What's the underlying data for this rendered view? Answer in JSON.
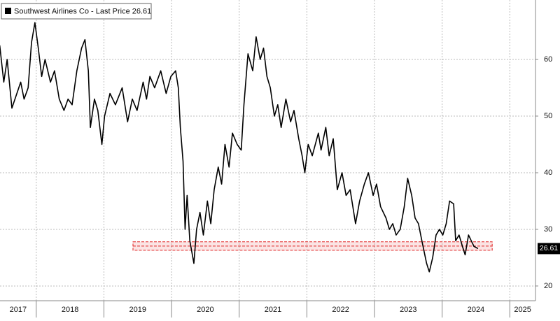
{
  "chart_data": {
    "type": "line",
    "series": [
      {
        "name": "Southwest Airlines Co - Last Price 26.61",
        "color": "#000000",
        "x": [
          2017.46,
          2017.52,
          2017.57,
          2017.64,
          2017.77,
          2017.82,
          2017.88,
          2017.93,
          2017.98,
          2018.03,
          2018.08,
          2018.13,
          2018.21,
          2018.27,
          2018.34,
          2018.41,
          2018.47,
          2018.53,
          2018.6,
          2018.67,
          2018.72,
          2018.77,
          2018.8,
          2018.86,
          2018.91,
          2018.97,
          2019.01,
          2019.09,
          2019.17,
          2019.27,
          2019.35,
          2019.42,
          2019.49,
          2019.58,
          2019.63,
          2019.68,
          2019.75,
          2019.84,
          2019.92,
          2019.99,
          2020.06,
          2020.1,
          2020.13,
          2020.17,
          2020.2,
          2020.23,
          2020.27,
          2020.33,
          2020.37,
          2020.42,
          2020.47,
          2020.53,
          2020.58,
          2020.63,
          2020.69,
          2020.74,
          2020.79,
          2020.85,
          2020.9,
          2020.97,
          2021.03,
          2021.07,
          2021.13,
          2021.2,
          2021.25,
          2021.31,
          2021.36,
          2021.41,
          2021.46,
          2021.52,
          2021.57,
          2021.62,
          2021.69,
          2021.76,
          2021.81,
          2021.88,
          2021.93,
          2021.97,
          2022.02,
          2022.08,
          2022.17,
          2022.21,
          2022.28,
          2022.33,
          2022.39,
          2022.45,
          2022.52,
          2022.58,
          2022.64,
          2022.72,
          2022.78,
          2022.85,
          2022.91,
          2022.98,
          2023.03,
          2023.09,
          2023.17,
          2023.22,
          2023.27,
          2023.32,
          2023.38,
          2023.44,
          2023.49,
          2023.55,
          2023.6,
          2023.65,
          2023.7,
          2023.77,
          2023.81,
          2023.86,
          2023.91,
          2023.96,
          2024.01,
          2024.06,
          2024.11,
          2024.17,
          2024.2,
          2024.25,
          2024.3,
          2024.34,
          2024.39,
          2024.43,
          2024.47,
          2024.53
        ],
        "values": [
          62.5,
          56,
          60,
          51.4,
          56,
          53,
          55,
          63,
          66.5,
          62,
          57,
          60,
          56,
          58,
          53,
          51,
          53,
          52,
          58,
          62,
          63.5,
          58,
          48,
          53,
          51,
          45,
          50,
          54,
          52,
          55,
          49,
          53,
          51,
          56,
          53,
          57,
          55,
          58,
          54,
          57,
          58,
          55,
          48,
          42,
          30,
          36,
          28,
          24,
          30,
          33,
          29,
          35,
          31,
          37,
          41,
          38,
          45,
          41,
          47,
          45,
          44,
          52,
          61,
          58,
          64,
          60,
          62,
          57,
          55,
          50,
          52,
          48,
          53,
          49,
          51,
          46,
          43,
          40,
          45,
          43,
          47,
          44,
          48,
          43,
          46,
          37,
          40,
          36,
          37,
          31,
          35,
          38,
          40,
          36,
          38,
          34,
          32,
          30,
          31,
          29,
          30,
          34,
          39,
          36,
          32,
          31,
          28,
          24,
          22.5,
          25,
          29,
          30,
          29,
          31,
          35,
          34.5,
          28,
          29,
          27,
          25.5,
          29,
          28,
          27,
          26.61
        ]
      }
    ],
    "xlim": [
      2017.464,
      2025.38
    ],
    "xticks": [
      2017,
      2018,
      2019,
      2020,
      2021,
      2022,
      2023,
      2024,
      2025
    ],
    "ylim": [
      17.4,
      70.5
    ],
    "yticks": [
      20,
      30,
      40,
      50,
      60
    ],
    "grid": true,
    "legend": "upper left",
    "highlight": {
      "color": "#e02020",
      "xlim": [
        2019.43,
        2024.74
      ],
      "ylim": [
        26.3,
        27.8
      ]
    }
  }
}
